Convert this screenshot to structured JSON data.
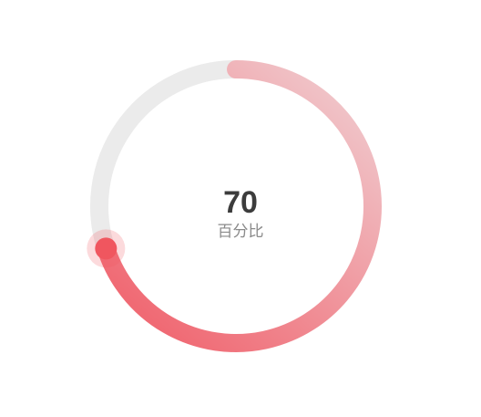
{
  "chart_data": {
    "type": "gauge",
    "value": 70,
    "max": 100,
    "value_text": "70",
    "label": "百分比",
    "colors": {
      "track": "#ebebeb",
      "progress_start": "#f0c8cc",
      "progress_end": "#f06a74",
      "handle": "#f0565f",
      "value_text": "#3c3c3c",
      "label_text": "#8a8a8a"
    }
  }
}
